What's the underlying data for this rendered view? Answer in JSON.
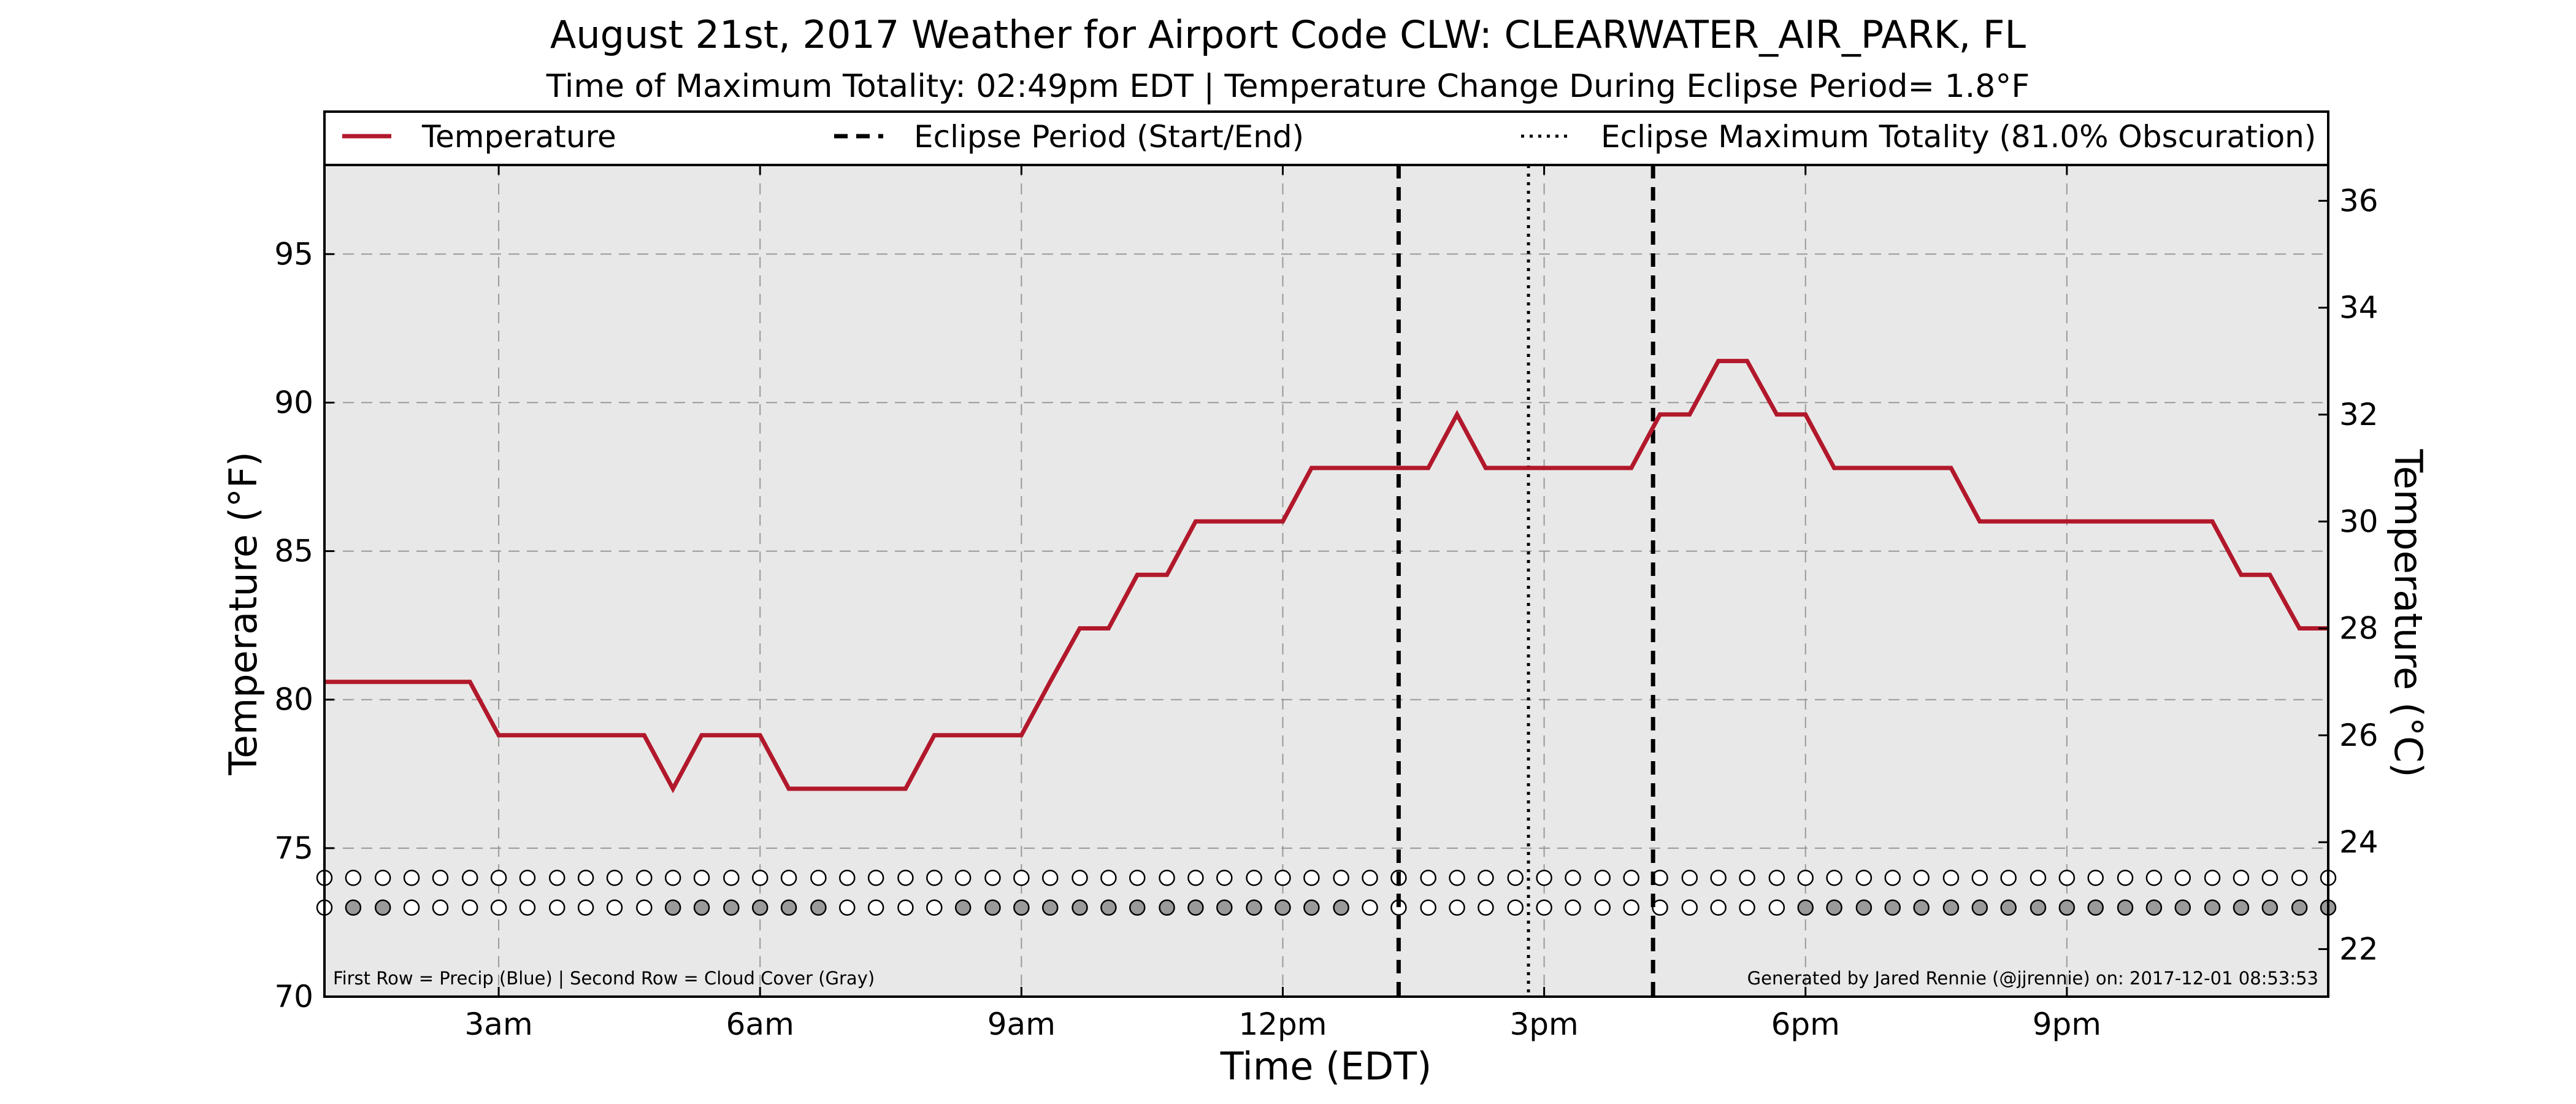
{
  "chart_data": {
    "type": "line",
    "title": "August 21st, 2017 Weather for Airport Code CLW: CLEARWATER_AIR_PARK, FL",
    "subtitle": "Time of Maximum Totality: 02:49pm EDT | Temperature Change During Eclipse Period= 1.8°F",
    "xlabel": "Time (EDT)",
    "ylabel": "Temperature (°F)",
    "ylabel_right": "Temperature (°C)",
    "x_unit": "hours after midnight EDT",
    "xlim": [
      1,
      24
    ],
    "ylim": [
      70,
      98
    ],
    "ylim_right": [
      21.11,
      36.67
    ],
    "x_ticks": [
      {
        "value": 3,
        "label": "3am"
      },
      {
        "value": 6,
        "label": "6am"
      },
      {
        "value": 9,
        "label": "9am"
      },
      {
        "value": 12,
        "label": "12pm"
      },
      {
        "value": 15,
        "label": "3pm"
      },
      {
        "value": 18,
        "label": "6pm"
      },
      {
        "value": 21,
        "label": "9pm"
      }
    ],
    "y_ticks": [
      70,
      75,
      80,
      85,
      90,
      95
    ],
    "y_ticks_right": [
      22,
      24,
      26,
      28,
      30,
      32,
      34,
      36
    ],
    "grid": true,
    "legend_position": "top",
    "legend": [
      {
        "label": "Temperature",
        "style": "solid",
        "color": "#b2182b"
      },
      {
        "label": "Eclipse Period (Start/End)",
        "style": "dashed",
        "color": "#000000"
      },
      {
        "label": "Eclipse Maximum Totality (81.0% Obscuration)",
        "style": "dotted",
        "color": "#000000"
      }
    ],
    "series": [
      {
        "name": "Temperature",
        "color": "#b2182b",
        "x": [
          1.0,
          1.33,
          1.67,
          2.0,
          2.33,
          2.67,
          3.0,
          3.33,
          3.67,
          4.0,
          4.33,
          4.67,
          5.0,
          5.33,
          5.67,
          6.0,
          6.33,
          6.67,
          7.0,
          7.33,
          7.67,
          8.0,
          8.33,
          8.67,
          9.0,
          9.33,
          9.67,
          10.0,
          10.33,
          10.67,
          11.0,
          11.33,
          11.67,
          12.0,
          12.33,
          12.67,
          13.0,
          13.33,
          13.67,
          14.0,
          14.33,
          14.67,
          15.0,
          15.33,
          15.67,
          16.0,
          16.33,
          16.67,
          17.0,
          17.33,
          17.67,
          18.0,
          18.33,
          18.67,
          19.0,
          19.33,
          19.67,
          20.0,
          20.33,
          20.67,
          21.0,
          21.33,
          21.67,
          22.0,
          22.33,
          22.67,
          23.0,
          23.33,
          23.67,
          24.0
        ],
        "values": [
          80.6,
          80.6,
          80.6,
          80.6,
          80.6,
          80.6,
          78.8,
          78.8,
          78.8,
          78.8,
          78.8,
          78.8,
          77.0,
          78.8,
          78.8,
          78.8,
          77.0,
          77.0,
          77.0,
          77.0,
          77.0,
          78.8,
          78.8,
          78.8,
          78.8,
          80.6,
          82.4,
          82.4,
          84.2,
          84.2,
          86.0,
          86.0,
          86.0,
          86.0,
          87.8,
          87.8,
          87.8,
          87.8,
          87.8,
          89.6,
          87.8,
          87.8,
          87.8,
          87.8,
          87.8,
          87.8,
          89.6,
          89.6,
          91.4,
          91.4,
          89.6,
          89.6,
          87.8,
          87.8,
          87.8,
          87.8,
          87.8,
          86.0,
          86.0,
          86.0,
          86.0,
          86.0,
          86.0,
          86.0,
          86.0,
          86.0,
          84.2,
          84.2,
          82.4,
          82.4
        ]
      }
    ],
    "eclipse_period": [
      13.33,
      16.25
    ],
    "max_totality": 14.82,
    "precip_row_y": 74.0,
    "cloud_row_y": 73.0,
    "dot_x": [
      1.0,
      1.33,
      1.67,
      2.0,
      2.33,
      2.67,
      3.0,
      3.33,
      3.67,
      4.0,
      4.33,
      4.67,
      5.0,
      5.33,
      5.67,
      6.0,
      6.33,
      6.67,
      7.0,
      7.33,
      7.67,
      8.0,
      8.33,
      8.67,
      9.0,
      9.33,
      9.67,
      10.0,
      10.33,
      10.67,
      11.0,
      11.33,
      11.67,
      12.0,
      12.33,
      12.67,
      13.0,
      13.33,
      13.67,
      14.0,
      14.33,
      14.67,
      15.0,
      15.33,
      15.67,
      16.0,
      16.33,
      16.67,
      17.0,
      17.33,
      17.67,
      18.0,
      18.33,
      18.67,
      19.0,
      19.33,
      19.67,
      20.0,
      20.33,
      20.67,
      21.0,
      21.33,
      21.67,
      22.0,
      22.33,
      22.67,
      23.0,
      23.33,
      23.67,
      24.0
    ],
    "precip_filled": [],
    "cloud_filled": [
      1.33,
      1.67,
      5.0,
      5.33,
      5.67,
      6.0,
      6.33,
      6.67,
      8.33,
      8.67,
      9.0,
      9.33,
      9.67,
      10.0,
      10.33,
      10.67,
      11.0,
      11.33,
      11.67,
      12.0,
      12.33,
      12.67,
      18.0,
      18.33,
      18.67,
      19.0,
      19.33,
      19.67,
      20.0,
      20.33,
      20.67,
      21.0,
      21.33,
      21.67,
      22.0,
      22.33,
      22.67,
      23.0,
      23.33,
      23.67,
      24.0
    ],
    "colors": {
      "plot_background": "#e8e8e8",
      "grid": "#999999",
      "temperature": "#b2182b",
      "cloud_fill": "#9a9a9a",
      "precip_fill": "#3060c0",
      "empty_dot": "#ffffff"
    }
  },
  "annotations": {
    "rows_note": "First Row = Precip (Blue) | Second Row = Cloud Cover (Gray)",
    "credit": "Generated by Jared Rennie (@jjrennie) on: 2017-12-01 08:53:53"
  }
}
